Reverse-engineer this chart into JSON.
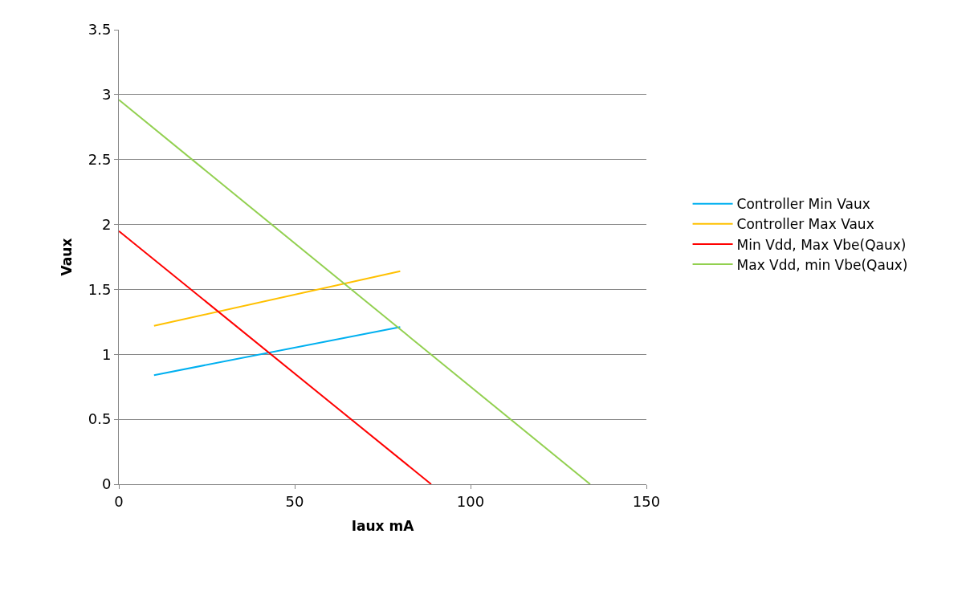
{
  "chart_data": {
    "type": "line",
    "xlabel": "Iaux mA",
    "ylabel": "Vaux",
    "xlim": [
      0,
      150
    ],
    "xticks": [
      0,
      50,
      100,
      150
    ],
    "ylim": [
      0,
      3.5
    ],
    "yticks": [
      0,
      0.5,
      1,
      1.5,
      2,
      2.5,
      3,
      3.5
    ],
    "grid": "y",
    "legend": "right",
    "marker": "none",
    "line_style": "solid",
    "series": [
      {
        "name": "Controller Min Vaux",
        "color": "#00b0f0",
        "x": [
          10,
          80
        ],
        "values": [
          0.84,
          1.21
        ]
      },
      {
        "name": "Controller Max Vaux",
        "color": "#ffc000",
        "x": [
          10,
          80
        ],
        "values": [
          1.22,
          1.64
        ]
      },
      {
        "name": "Min Vdd, Max Vbe(Qaux)",
        "color": "#ff0000",
        "x": [
          0,
          88.8
        ],
        "values": [
          1.95,
          0
        ]
      },
      {
        "name": "Max Vdd, min Vbe(Qaux)",
        "color": "#92d050",
        "x": [
          0,
          134
        ],
        "values": [
          2.96,
          0
        ]
      }
    ]
  }
}
